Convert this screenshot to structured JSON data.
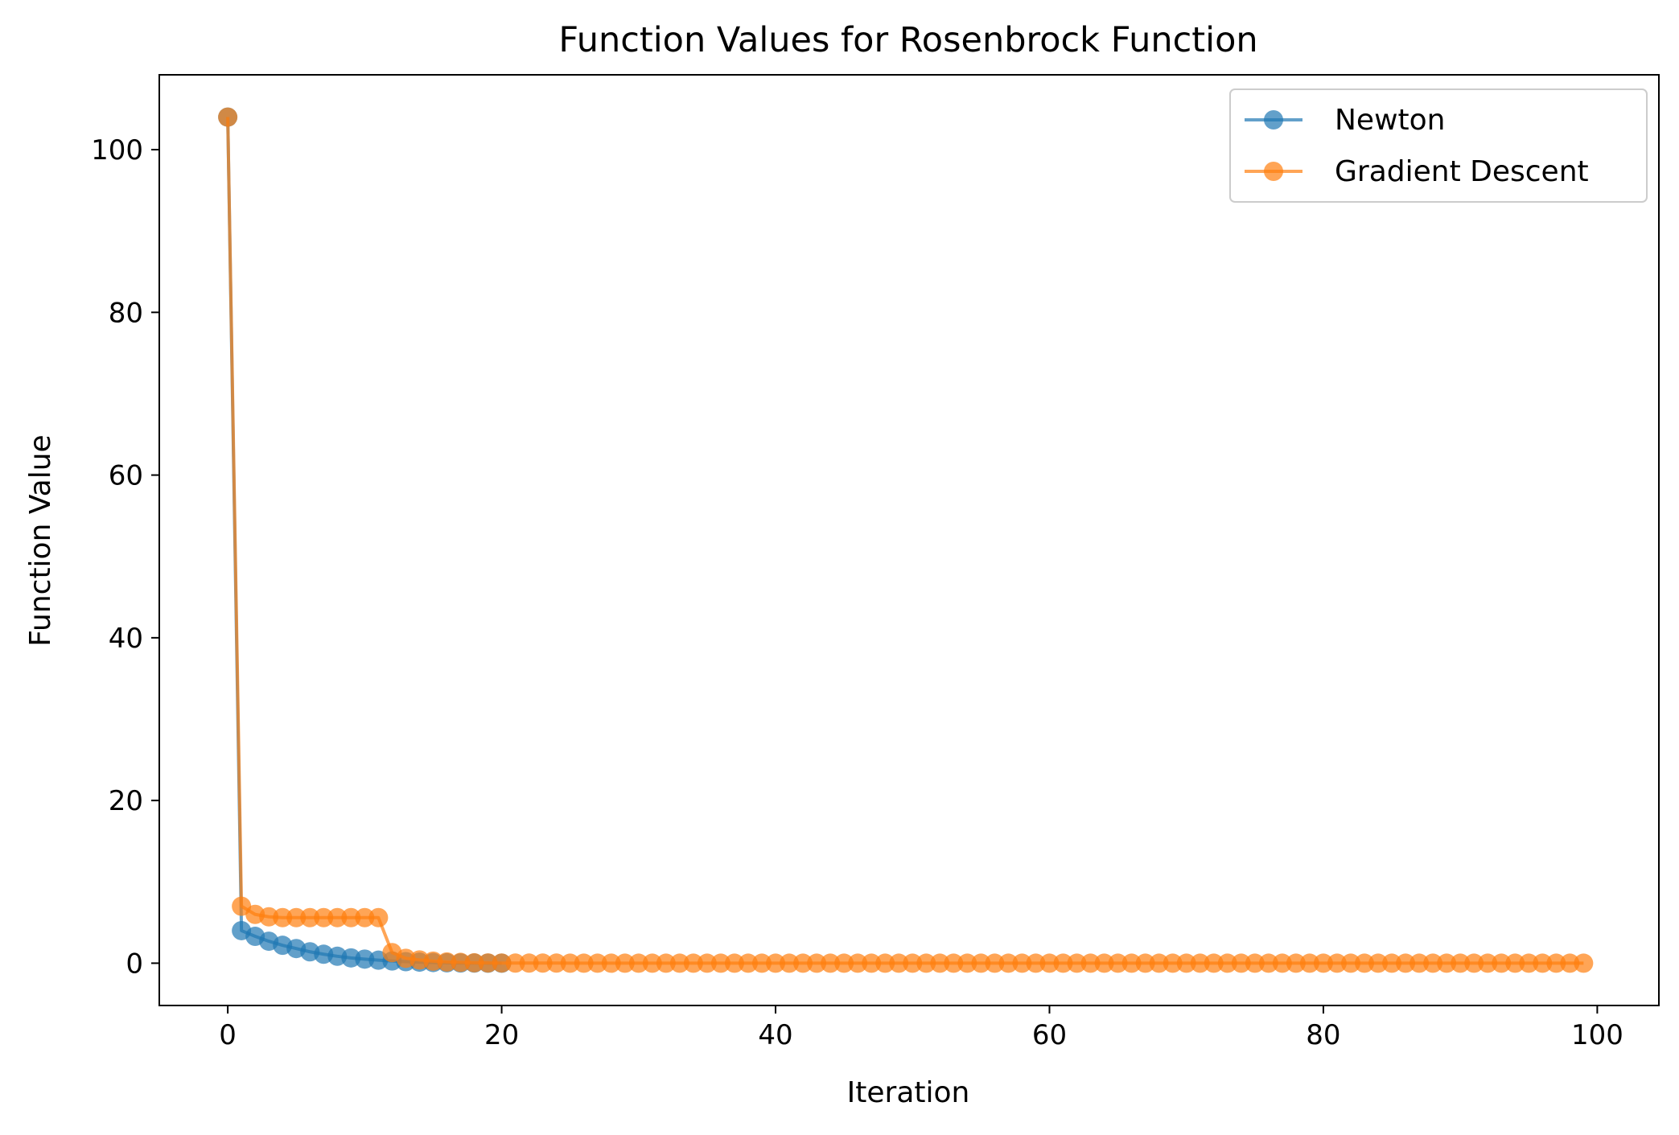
{
  "chart_data": {
    "type": "line",
    "title": "Function Values for Rosenbrock Function",
    "xlabel": "Iteration",
    "ylabel": "Function Value",
    "xlim": [
      -5,
      104.5
    ],
    "ylim": [
      -5.2,
      109.2
    ],
    "xticks": [
      0,
      20,
      40,
      60,
      80,
      100
    ],
    "yticks": [
      0,
      20,
      40,
      60,
      80,
      100
    ],
    "grid": false,
    "legend_position": "upper right",
    "series": [
      {
        "name": "Newton",
        "color": "#1f77b4",
        "marker": "circle",
        "x": [
          0,
          1,
          2,
          3,
          4,
          5,
          6,
          7,
          8,
          9,
          10,
          11,
          12,
          13,
          14,
          15,
          16,
          17,
          18,
          19,
          20
        ],
        "values": [
          104.0,
          4.0,
          3.3,
          2.7,
          2.2,
          1.8,
          1.4,
          1.1,
          0.85,
          0.65,
          0.5,
          0.37,
          0.27,
          0.19,
          0.13,
          0.08,
          0.05,
          0.03,
          0.015,
          0.005,
          0.0
        ]
      },
      {
        "name": "Gradient Descent",
        "color": "#ff7f0e",
        "marker": "circle",
        "x": [
          0,
          1,
          2,
          3,
          4,
          5,
          6,
          7,
          8,
          9,
          10,
          11,
          12,
          13,
          14,
          15,
          16,
          17,
          18,
          19,
          20,
          21,
          22,
          23,
          24,
          25,
          26,
          27,
          28,
          29,
          30,
          31,
          32,
          33,
          34,
          35,
          36,
          37,
          38,
          39,
          40,
          41,
          42,
          43,
          44,
          45,
          46,
          47,
          48,
          49,
          50,
          51,
          52,
          53,
          54,
          55,
          56,
          57,
          58,
          59,
          60,
          61,
          62,
          63,
          64,
          65,
          66,
          67,
          68,
          69,
          70,
          71,
          72,
          73,
          74,
          75,
          76,
          77,
          78,
          79,
          80,
          81,
          82,
          83,
          84,
          85,
          86,
          87,
          88,
          89,
          90,
          91,
          92,
          93,
          94,
          95,
          96,
          97,
          98,
          99
        ],
        "values": [
          104.0,
          7.0,
          6.0,
          5.7,
          5.6,
          5.6,
          5.6,
          5.6,
          5.6,
          5.6,
          5.6,
          5.6,
          1.3,
          0.6,
          0.4,
          0.25,
          0.15,
          0.1,
          0.05,
          0.03,
          0.02,
          0.01,
          0.01,
          0.01,
          0.01,
          0.0,
          0.0,
          0.0,
          0.0,
          0.0,
          0.0,
          0.0,
          0.0,
          0.0,
          0.0,
          0.0,
          0.0,
          0.0,
          0.0,
          0.0,
          0.0,
          0.0,
          0.0,
          0.0,
          0.0,
          0.0,
          0.0,
          0.0,
          0.0,
          0.0,
          0.0,
          0.0,
          0.0,
          0.0,
          0.0,
          0.0,
          0.0,
          0.0,
          0.0,
          0.0,
          0.0,
          0.0,
          0.0,
          0.0,
          0.0,
          0.0,
          0.0,
          0.0,
          0.0,
          0.0,
          0.0,
          0.0,
          0.0,
          0.0,
          0.0,
          0.0,
          0.0,
          0.0,
          0.0,
          0.0,
          0.0,
          0.0,
          0.0,
          0.0,
          0.0,
          0.0,
          0.0,
          0.0,
          0.0,
          0.0,
          0.0,
          0.0,
          0.0,
          0.0,
          0.0,
          0.0,
          0.0,
          0.0,
          0.0,
          0.0
        ]
      }
    ]
  }
}
